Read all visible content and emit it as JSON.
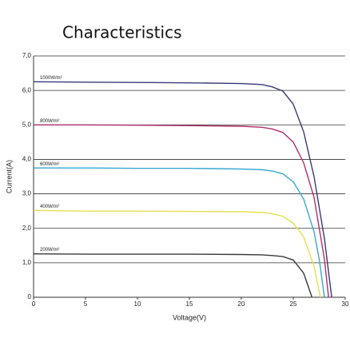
{
  "chart_data": {
    "type": "line",
    "title": "Characteristics",
    "x_label": "Voltage(V)",
    "y_label": "Current(A)",
    "xlim": [
      0,
      30
    ],
    "xticks": [
      0,
      5,
      10,
      15,
      20,
      25,
      30
    ],
    "ylim": [
      0,
      7
    ],
    "yticks": [
      0,
      {
        "value": 1,
        "label": "1,0"
      },
      {
        "value": 2,
        "label": "2,0"
      },
      {
        "value": 3,
        "label": "3,0"
      },
      {
        "value": 4,
        "label": "4,0"
      },
      {
        "value": 5,
        "label": "5,0"
      },
      {
        "value": 6,
        "label": "6,0"
      },
      {
        "value": 7,
        "label": "7,0"
      }
    ],
    "grid": true,
    "series": [
      {
        "name": "1000W/m²",
        "color": "#3b3a78",
        "x": [
          0,
          5,
          10,
          15,
          20,
          22,
          23,
          24,
          25,
          26,
          27,
          28,
          28.7
        ],
        "values": [
          6.25,
          6.24,
          6.23,
          6.22,
          6.2,
          6.17,
          6.1,
          5.98,
          5.6,
          4.8,
          3.5,
          1.7,
          0
        ]
      },
      {
        "name": "800W/m²",
        "color": "#b2306a",
        "x": [
          0,
          5,
          10,
          15,
          20,
          22,
          23,
          24,
          25,
          26,
          27,
          28,
          28.4
        ],
        "values": [
          5.0,
          5.0,
          4.99,
          4.98,
          4.96,
          4.93,
          4.88,
          4.78,
          4.5,
          3.9,
          2.9,
          1.1,
          0
        ]
      },
      {
        "name": "600W/m²",
        "color": "#3ba8d0",
        "x": [
          0,
          5,
          10,
          15,
          20,
          22,
          23,
          24,
          25,
          26,
          27,
          27.5,
          28.0
        ],
        "values": [
          3.75,
          3.75,
          3.74,
          3.74,
          3.72,
          3.7,
          3.66,
          3.58,
          3.35,
          2.85,
          1.9,
          1.1,
          0
        ]
      },
      {
        "name": "400W/m²",
        "color": "#e6df4f",
        "x": [
          0,
          5,
          10,
          15,
          20,
          22,
          23,
          24,
          25,
          26,
          27,
          27.6
        ],
        "values": [
          2.52,
          2.5,
          2.5,
          2.49,
          2.48,
          2.46,
          2.42,
          2.35,
          2.15,
          1.75,
          0.9,
          0
        ]
      },
      {
        "name": "200W/m²",
        "color": "#3a3a3a",
        "x": [
          0,
          5,
          10,
          15,
          20,
          22,
          23,
          24,
          25,
          26,
          26.8
        ],
        "values": [
          1.26,
          1.25,
          1.25,
          1.25,
          1.24,
          1.23,
          1.21,
          1.18,
          1.08,
          0.7,
          0
        ]
      }
    ]
  }
}
